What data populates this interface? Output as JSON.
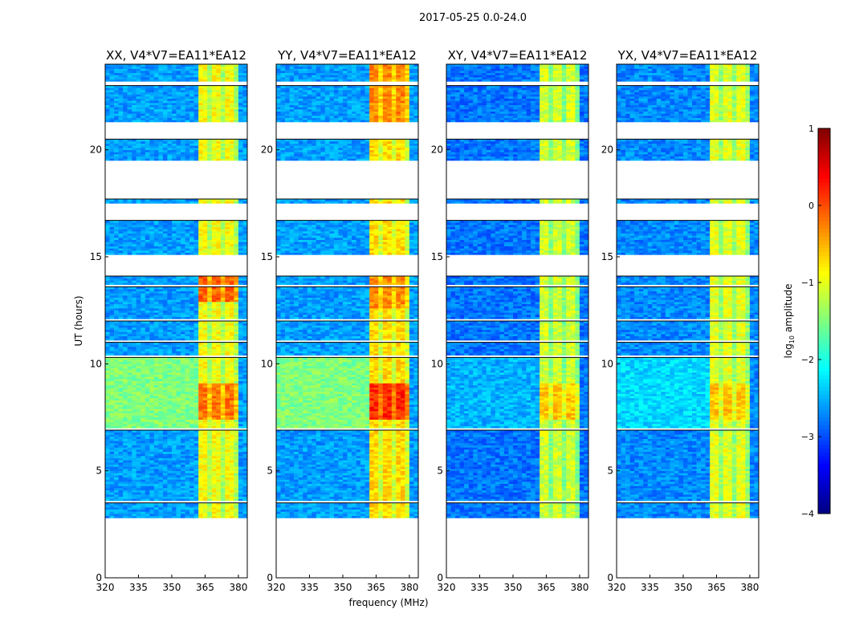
{
  "chart_data": {
    "type": "heatmap",
    "suptitle": "2017-05-25 0.0-24.0",
    "xlabel": "frequency (MHz)",
    "ylabel": "UT (hours)",
    "xlim": [
      320,
      384
    ],
    "ylim": [
      0,
      24
    ],
    "xticks": [
      320,
      335,
      350,
      365,
      380
    ],
    "yticks": [
      0,
      5,
      10,
      15,
      20
    ],
    "time_segments_with_data": [
      [
        2.8,
        3.5
      ],
      [
        3.6,
        6.9
      ],
      [
        7.0,
        10.3
      ],
      [
        10.4,
        11.0
      ],
      [
        11.1,
        12.0
      ],
      [
        12.1,
        13.6
      ],
      [
        13.7,
        14.1
      ],
      [
        15.1,
        16.7
      ],
      [
        17.5,
        17.7
      ],
      [
        19.5,
        20.5
      ],
      [
        21.3,
        23.0
      ],
      [
        23.2,
        24.0
      ]
    ],
    "panels": [
      {
        "title": "XX, V4*V7=EA11*EA12",
        "base_level": -2.6,
        "band": {
          "fmin": 361,
          "fmax": 380,
          "level": -0.9
        },
        "enhanced_base": {
          "t0": 7.0,
          "t1": 10.3,
          "level": -1.5
        },
        "hot_periods": [
          {
            "t0": 7.3,
            "t1": 9.0,
            "level": -0.2
          },
          {
            "t0": 12.8,
            "t1": 14.1,
            "level": -0.1
          }
        ]
      },
      {
        "title": "YY, V4*V7=EA11*EA12",
        "base_level": -2.6,
        "band": {
          "fmin": 361,
          "fmax": 380,
          "level": -0.7
        },
        "enhanced_base": {
          "t0": 7.0,
          "t1": 10.3,
          "level": -1.5
        },
        "hot_periods": [
          {
            "t0": 7.3,
            "t1": 9.0,
            "level": 0.2
          },
          {
            "t0": 12.5,
            "t1": 14.1,
            "level": -0.3
          },
          {
            "t0": 21.3,
            "t1": 24.0,
            "level": -0.3
          }
        ]
      },
      {
        "title": "XY, V4*V7=EA11*EA12",
        "base_level": -2.8,
        "band": {
          "fmin": 361,
          "fmax": 380,
          "level": -1.1
        },
        "enhanced_base": {
          "t0": 7.0,
          "t1": 10.3,
          "level": -2.5
        },
        "hot_periods": [
          {
            "t0": 7.3,
            "t1": 9.0,
            "level": -0.6
          }
        ]
      },
      {
        "title": "YX, V4*V7=EA11*EA12",
        "base_level": -2.7,
        "band": {
          "fmin": 361,
          "fmax": 380,
          "level": -1.0
        },
        "enhanced_base": {
          "t0": 7.0,
          "t1": 10.3,
          "level": -2.3
        },
        "hot_periods": [
          {
            "t0": 7.3,
            "t1": 9.0,
            "level": -0.6
          }
        ]
      }
    ],
    "colorbar": {
      "label": "log",
      "label_sub": "10",
      "label_rest": " amplitude",
      "range": [
        -4,
        1
      ],
      "ticks": [
        "1",
        "0",
        "−1",
        "−2",
        "−3",
        "−4"
      ],
      "tick_values": [
        1,
        0,
        -1,
        -2,
        -3,
        -4
      ],
      "colormap": "jet"
    }
  }
}
